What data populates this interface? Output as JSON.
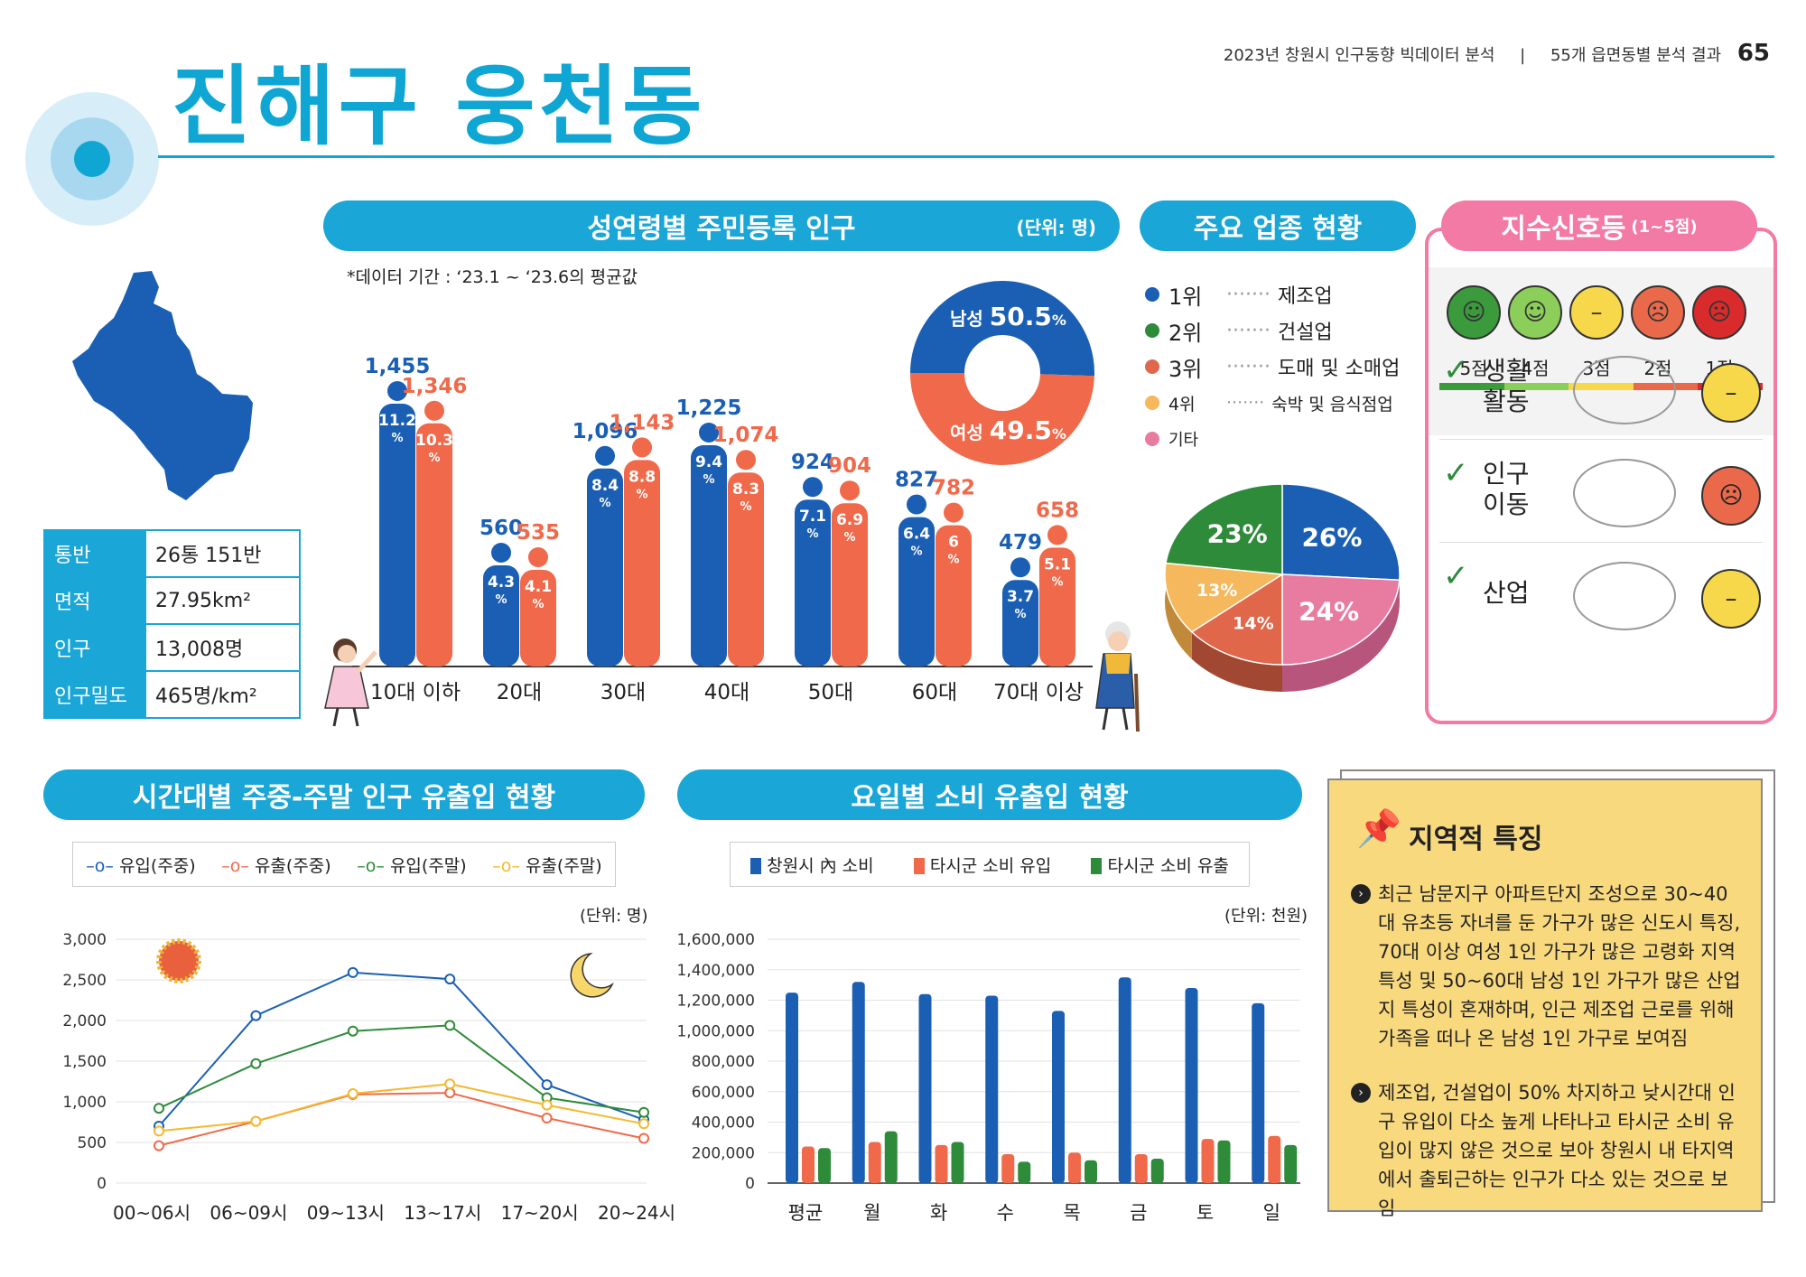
{
  "header": {
    "title": "진해구 웅천동",
    "report": "2023년 창원시 인구동향 빅데이터 분석",
    "sep": "|",
    "section": "55개 읍면동별 분석 결과",
    "page": "65"
  },
  "info_table": [
    {
      "k": "통반",
      "v": "26통 151반"
    },
    {
      "k": "면적",
      "v": "27.95km²"
    },
    {
      "k": "인구",
      "v": "13,008명"
    },
    {
      "k": "인구밀도",
      "v": "465명/km²"
    }
  ],
  "population": {
    "title": "성연령별 주민등록 인구",
    "unit": "(단위: 명)",
    "note": "*데이터 기간 : ‘23.1 ~ ‘23.6의 평균값",
    "male_color": "#1a5fb4",
    "female_color": "#f0694a"
  },
  "gender": {
    "male_label": "남성",
    "male_value": "50.5",
    "female_label": "여성",
    "female_value": "49.5",
    "pct": "%"
  },
  "industry": {
    "title": "주요 업종 현황",
    "items": [
      {
        "rank": "1위",
        "name": "제조업",
        "color": "#1a5fb4"
      },
      {
        "rank": "2위",
        "name": "건설업",
        "color": "#2e8b3a"
      },
      {
        "rank": "3위",
        "name": "도매 및 소매업",
        "color": "#e0674a"
      },
      {
        "rank": "4위",
        "name": "숙박 및 음식점업",
        "color": "#f5b85c"
      },
      {
        "rank": "기타",
        "name": "",
        "color": "#e87ca0"
      }
    ],
    "dots": "·······"
  },
  "signal": {
    "title": "지수신호등",
    "range": "(1~5점)",
    "scores": [
      "5점",
      "4점",
      "3점",
      "2점",
      "1점"
    ],
    "face_colors": [
      "#3a9a3c",
      "#8cce5a",
      "#f7d84a",
      "#e9694a",
      "#d92b2b"
    ],
    "rows": [
      {
        "label1": "생활",
        "label2": "활동",
        "face": "#f7d84a"
      },
      {
        "label1": "인구",
        "label2": "이동",
        "face": "#e9694a"
      },
      {
        "label1": "산업",
        "label2": "",
        "face": "#f7d84a"
      }
    ]
  },
  "flow": {
    "title": "시간대별 주중-주말 인구 유출입 현황",
    "unit": "(단위: 명)",
    "legend": [
      "유입(주중)",
      "유출(주중)",
      "유입(주말)",
      "유출(주말)"
    ]
  },
  "consume": {
    "title": "요일별 소비 유출입 현황",
    "unit": "(단위: 천원)",
    "legend": [
      "창원시 內 소비",
      "타시군 소비 유입",
      "타시군 소비 유출"
    ]
  },
  "regional": {
    "title": "지역적 특징",
    "p1": "최근 남문지구 아파트단지 조성으로 30~40대 유초등 자녀를 둔 가구가 많은 신도시 특징, 70대 이상 여성 1인 가구가 많은 고령화 지역 특성 및 50~60대 남성 1인 가구가 많은 산업지 특성이 혼재하며, 인근 제조업 근로를 위해 가족을 떠나 온 남성 1인 가구로 보여짐",
    "p2": "제조업, 건설업이 50% 차지하고 낮시간대 인구 유입이 다소 높게 나타나고 타시군 소비 유입이 많지 않은 것으로 보아 창원시 내 타지역에서 출퇴근하는 인구가 다소 있는 것으로 보임"
  },
  "chart_data": [
    {
      "type": "bar",
      "categories": [
        "10대 이하",
        "20대",
        "30대",
        "40대",
        "50대",
        "60대",
        "70대 이상"
      ],
      "series": [
        {
          "values": [
            1455,
            560,
            1096,
            1225,
            924,
            827,
            479
          ],
          "labels": [
            "1,455",
            "560",
            "1,096",
            "1,225",
            "924",
            "827",
            "479"
          ],
          "pct": [
            "11.2",
            "4.3",
            "8.4",
            "9.4",
            "7.1",
            "6.4",
            "3.7"
          ],
          "color": "#1a5fb4"
        },
        {
          "values": [
            1346,
            535,
            1143,
            1074,
            904,
            782,
            658
          ],
          "labels": [
            "1,346",
            "535",
            "1,143",
            "1,074",
            "904",
            "782",
            "658"
          ],
          "pct": [
            "10.3",
            "4.1",
            "8.8",
            "8.3",
            "6.9",
            "6",
            "5.1"
          ],
          "color": "#f0694a"
        }
      ],
      "pct_sign": "%"
    },
    {
      "type": "pie",
      "values": [
        50.5,
        49.5
      ],
      "labels": [
        "남성",
        "여성"
      ],
      "colors": [
        "#1a5fb4",
        "#f0694a"
      ]
    },
    {
      "type": "pie",
      "values": [
        26,
        24,
        14,
        13,
        23
      ],
      "labels": [
        "26%",
        "24%",
        "14%",
        "13%",
        "23%"
      ],
      "colors": [
        "#1a5fb4",
        "#e87ca0",
        "#e0674a",
        "#f5b85c",
        "#2e8b3a"
      ]
    },
    {
      "type": "line",
      "categories": [
        "00~06시",
        "06~09시",
        "09~13시",
        "13~17시",
        "17~20시",
        "20~24시"
      ],
      "ylim": [
        0,
        3000
      ],
      "yticks": [
        "3,000",
        "2,500",
        "2,000",
        "1,500",
        "1,000",
        "500",
        "0"
      ],
      "series": [
        {
          "name": "유입(주중)",
          "values": [
            700,
            2060,
            2590,
            2510,
            1210,
            780
          ],
          "color": "#1a5fb4"
        },
        {
          "name": "유출(주중)",
          "values": [
            460,
            760,
            1090,
            1110,
            800,
            550
          ],
          "color": "#f0694a"
        },
        {
          "name": "유입(주말)",
          "values": [
            920,
            1470,
            1870,
            1940,
            1050,
            870
          ],
          "color": "#2e8b3a"
        },
        {
          "name": "유출(주말)",
          "values": [
            640,
            760,
            1100,
            1220,
            960,
            730
          ],
          "color": "#f5b82e"
        }
      ]
    },
    {
      "type": "bar",
      "categories": [
        "평균",
        "월",
        "화",
        "수",
        "목",
        "금",
        "토",
        "일"
      ],
      "ylim": [
        0,
        1600000
      ],
      "yticks": [
        "1,600,000",
        "1,400,000",
        "1,200,000",
        "1,000,000",
        "800,000",
        "600,000",
        "400,000",
        "200,000",
        "0"
      ],
      "series": [
        {
          "name": "창원시 內 소비",
          "values": [
            1250000,
            1320000,
            1240000,
            1230000,
            1130000,
            1350000,
            1280000,
            1180000
          ],
          "color": "#1a5fb4"
        },
        {
          "name": "타시군 소비 유입",
          "values": [
            240000,
            270000,
            250000,
            190000,
            200000,
            190000,
            290000,
            310000
          ],
          "color": "#f0694a"
        },
        {
          "name": "타시군 소비 유출",
          "values": [
            230000,
            340000,
            270000,
            140000,
            150000,
            160000,
            280000,
            250000
          ],
          "color": "#2e8b3a"
        }
      ]
    }
  ]
}
